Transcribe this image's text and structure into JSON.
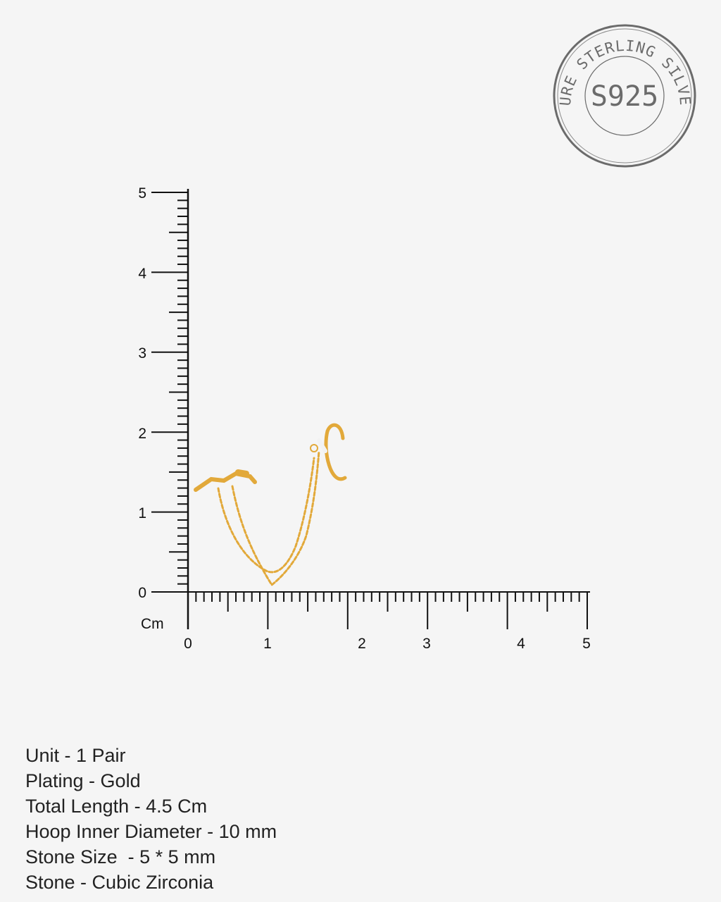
{
  "stamp": {
    "ring_text": "PURE STERLING SILVER",
    "center_text": "S925",
    "color": "#6b6b6b"
  },
  "ruler": {
    "unit": "Cm",
    "y_labels": [
      "0",
      "1",
      "2",
      "3",
      "4",
      "5"
    ],
    "x_labels": [
      "0",
      "1",
      "2",
      "3",
      "4",
      "5"
    ],
    "color": "#111111"
  },
  "product": {
    "name": "earring",
    "color": "#e2a93a"
  },
  "specs": [
    "Unit - 1 Pair",
    "Plating - Gold",
    "Total Length - 4.5 Cm",
    "Hoop Inner Diameter - 10 mm",
    "Stone Size  - 5 * 5 mm",
    "Stone - Cubic Zirconia"
  ]
}
